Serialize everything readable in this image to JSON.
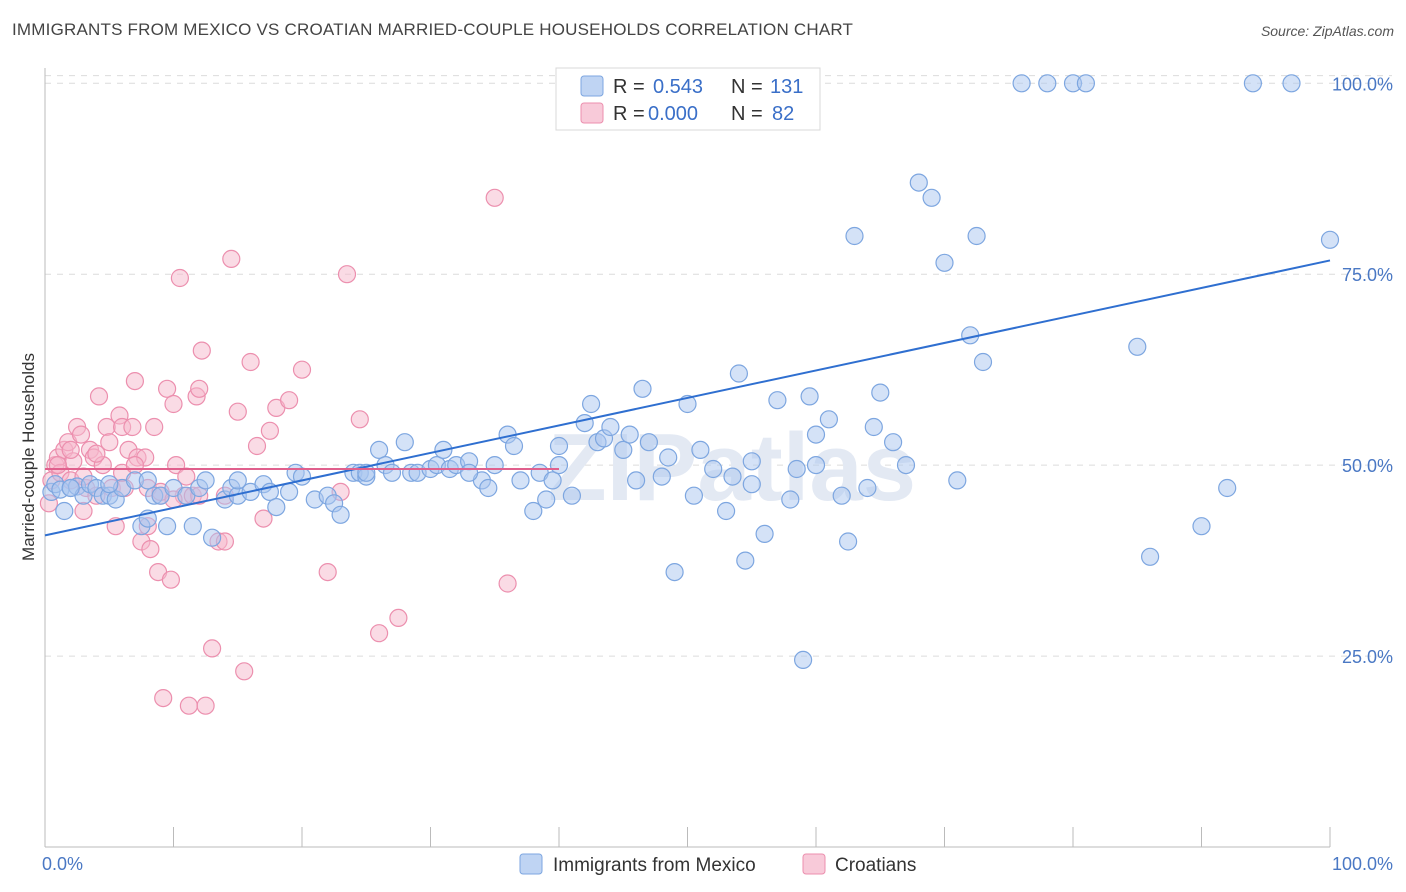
{
  "title": "IMMIGRANTS FROM MEXICO VS CROATIAN MARRIED-COUPLE HOUSEHOLDS CORRELATION CHART",
  "source": "Source: ZipAtlas.com",
  "watermark": "ZIPatlas",
  "legend": {
    "rows": [
      {
        "r_label": "R =",
        "r_value": "0.543",
        "n_label": "N =",
        "n_value": "131",
        "color": "#a9c6ef",
        "stroke": "#7da6e0"
      },
      {
        "r_label": "R =",
        "r_value": "0.000",
        "n_label": "N =",
        "n_value": "82",
        "color": "#f6b8cc",
        "stroke": "#ec8fae"
      }
    ]
  },
  "bottom_legend": [
    "Immigrants from Mexico",
    "Croatians"
  ],
  "chart_data": {
    "type": "scatter",
    "ylabel": "Married-couple Households",
    "x_tick_labels": [
      "0.0%",
      "100.0%"
    ],
    "y_tick_labels": [
      "100.0%",
      "75.0%",
      "50.0%",
      "25.0%"
    ],
    "y_ticks": [
      100,
      75,
      50,
      25
    ],
    "xlim": [
      0,
      100
    ],
    "ylim": [
      0,
      102
    ],
    "grid": true,
    "series": [
      {
        "name": "Immigrants from Mexico",
        "color": "#a9c6ef",
        "stroke": "#7da6e0",
        "trend": {
          "x": [
            0,
            100
          ],
          "y": [
            40.8,
            76.8
          ],
          "color": "#2f6fd0"
        },
        "points": [
          [
            0.5,
            46.5
          ],
          [
            0.8,
            47.5
          ],
          [
            1.2,
            46.8
          ],
          [
            1.5,
            44
          ],
          [
            2,
            47
          ],
          [
            2.5,
            47.2
          ],
          [
            3,
            46
          ],
          [
            3.5,
            47.5
          ],
          [
            4,
            47
          ],
          [
            4.5,
            46
          ],
          [
            5,
            46
          ],
          [
            5.5,
            45.5
          ],
          [
            6,
            47
          ],
          [
            7,
            48
          ],
          [
            7.5,
            42
          ],
          [
            8,
            43
          ],
          [
            8.5,
            46
          ],
          [
            9,
            46
          ],
          [
            9.5,
            42
          ],
          [
            10,
            47
          ],
          [
            11,
            46
          ],
          [
            11.5,
            42
          ],
          [
            12,
            47
          ],
          [
            12.5,
            48
          ],
          [
            13,
            40.5
          ],
          [
            14,
            45.5
          ],
          [
            14.5,
            47
          ],
          [
            15,
            46
          ],
          [
            16,
            46.5
          ],
          [
            17,
            47.5
          ],
          [
            17.5,
            46.5
          ],
          [
            18,
            44.5
          ],
          [
            19,
            46.5
          ],
          [
            19.5,
            49
          ],
          [
            20,
            48.5
          ],
          [
            21,
            45.5
          ],
          [
            22,
            46
          ],
          [
            22.5,
            45
          ],
          [
            23,
            43.5
          ],
          [
            24,
            49
          ],
          [
            24.5,
            49
          ],
          [
            25,
            48.5
          ],
          [
            26,
            52
          ],
          [
            26.5,
            50
          ],
          [
            27,
            49
          ],
          [
            28,
            53
          ],
          [
            28.5,
            49
          ],
          [
            29,
            49
          ],
          [
            30,
            49.5
          ],
          [
            30.5,
            50
          ],
          [
            31,
            52
          ],
          [
            31.5,
            49.5
          ],
          [
            32,
            50
          ],
          [
            33,
            50.5
          ],
          [
            34,
            48
          ],
          [
            34.5,
            47
          ],
          [
            35,
            50
          ],
          [
            36,
            54
          ],
          [
            36.5,
            52.5
          ],
          [
            37,
            48
          ],
          [
            38,
            44
          ],
          [
            38.5,
            49
          ],
          [
            39,
            45.5
          ],
          [
            39.5,
            48
          ],
          [
            40,
            52.5
          ],
          [
            41,
            46
          ],
          [
            42,
            55.5
          ],
          [
            42.5,
            58
          ],
          [
            43,
            53
          ],
          [
            43.5,
            53.5
          ],
          [
            44,
            55
          ],
          [
            45,
            52
          ],
          [
            45.5,
            54
          ],
          [
            46,
            48
          ],
          [
            46.5,
            60
          ],
          [
            47,
            53
          ],
          [
            48,
            48.5
          ],
          [
            48.5,
            51
          ],
          [
            49,
            36
          ],
          [
            50,
            58
          ],
          [
            50.5,
            46
          ],
          [
            51,
            52
          ],
          [
            52,
            49.5
          ],
          [
            53,
            44
          ],
          [
            53.5,
            48.5
          ],
          [
            54,
            62
          ],
          [
            54.5,
            37.5
          ],
          [
            55,
            47.5
          ],
          [
            56,
            41
          ],
          [
            57,
            58.5
          ],
          [
            58,
            45.5
          ],
          [
            58.5,
            49.5
          ],
          [
            59,
            24.5
          ],
          [
            59.5,
            59
          ],
          [
            60,
            54
          ],
          [
            61,
            56
          ],
          [
            62,
            46
          ],
          [
            62.5,
            40
          ],
          [
            63,
            80
          ],
          [
            64,
            47
          ],
          [
            64.5,
            55
          ],
          [
            65,
            59.5
          ],
          [
            66,
            53
          ],
          [
            67,
            50
          ],
          [
            68,
            87
          ],
          [
            69,
            85
          ],
          [
            70,
            76.5
          ],
          [
            71,
            48
          ],
          [
            72,
            67
          ],
          [
            72.5,
            80
          ],
          [
            73,
            63.5
          ],
          [
            76,
            100
          ],
          [
            78,
            100
          ],
          [
            80,
            100
          ],
          [
            81,
            100
          ],
          [
            85,
            65.5
          ],
          [
            86,
            38
          ],
          [
            90,
            42
          ],
          [
            92,
            47
          ],
          [
            94,
            100
          ],
          [
            97,
            100
          ],
          [
            100,
            79.5
          ],
          [
            2,
            47
          ],
          [
            5,
            47.5
          ],
          [
            8,
            48
          ],
          [
            15,
            48
          ],
          [
            25,
            49
          ],
          [
            33,
            49
          ],
          [
            40,
            50
          ],
          [
            55,
            50.5
          ],
          [
            60,
            50
          ]
        ]
      },
      {
        "name": "Croatians",
        "color": "#f6b8cc",
        "stroke": "#ec8fae",
        "trend": {
          "x": [
            0,
            40
          ],
          "y": [
            49.5,
            49.5
          ],
          "color": "#e0608d"
        },
        "points": [
          [
            0.3,
            45
          ],
          [
            0.5,
            48
          ],
          [
            0.8,
            50
          ],
          [
            1,
            51
          ],
          [
            1.2,
            49
          ],
          [
            1.5,
            52
          ],
          [
            1.8,
            53
          ],
          [
            2,
            48
          ],
          [
            2.2,
            50.5
          ],
          [
            2.5,
            55
          ],
          [
            2.8,
            54
          ],
          [
            3,
            44
          ],
          [
            3.2,
            47
          ],
          [
            3.5,
            52
          ],
          [
            3.8,
            51
          ],
          [
            4,
            46
          ],
          [
            4.2,
            59
          ],
          [
            4.5,
            50
          ],
          [
            4.8,
            55
          ],
          [
            5,
            53
          ],
          [
            5.2,
            47
          ],
          [
            5.5,
            42
          ],
          [
            5.8,
            56.5
          ],
          [
            6,
            55
          ],
          [
            6.2,
            47
          ],
          [
            6.5,
            52
          ],
          [
            6.8,
            55
          ],
          [
            7,
            61
          ],
          [
            7.2,
            51
          ],
          [
            7.5,
            40
          ],
          [
            7.8,
            51
          ],
          [
            8,
            42
          ],
          [
            8.2,
            39
          ],
          [
            8.5,
            55
          ],
          [
            8.8,
            36
          ],
          [
            9,
            46
          ],
          [
            9.2,
            19.5
          ],
          [
            9.5,
            60
          ],
          [
            9.8,
            35
          ],
          [
            10,
            58
          ],
          [
            10.2,
            50
          ],
          [
            10.5,
            74.5
          ],
          [
            10.8,
            46
          ],
          [
            11,
            48.5
          ],
          [
            11.2,
            18.5
          ],
          [
            11.5,
            46
          ],
          [
            11.8,
            59
          ],
          [
            12,
            60
          ],
          [
            12.2,
            65
          ],
          [
            12.5,
            18.5
          ],
          [
            13,
            26
          ],
          [
            13.5,
            40
          ],
          [
            14,
            40
          ],
          [
            14.5,
            77
          ],
          [
            15,
            57
          ],
          [
            15.5,
            23
          ],
          [
            16,
            63.5
          ],
          [
            16.5,
            52.5
          ],
          [
            17,
            43
          ],
          [
            17.5,
            54.5
          ],
          [
            18,
            57.5
          ],
          [
            19,
            58.5
          ],
          [
            20,
            62.5
          ],
          [
            22,
            36
          ],
          [
            23,
            46.5
          ],
          [
            23.5,
            75
          ],
          [
            24.5,
            56
          ],
          [
            26,
            28
          ],
          [
            27.5,
            30
          ],
          [
            35,
            85
          ],
          [
            36,
            34.5
          ],
          [
            1,
            50
          ],
          [
            2,
            52
          ],
          [
            3,
            48.5
          ],
          [
            4,
            51.5
          ],
          [
            6,
            49
          ],
          [
            7,
            50
          ],
          [
            8,
            47
          ],
          [
            9,
            46.5
          ],
          [
            10,
            45.5
          ],
          [
            12,
            46
          ],
          [
            14,
            46
          ]
        ]
      }
    ]
  }
}
